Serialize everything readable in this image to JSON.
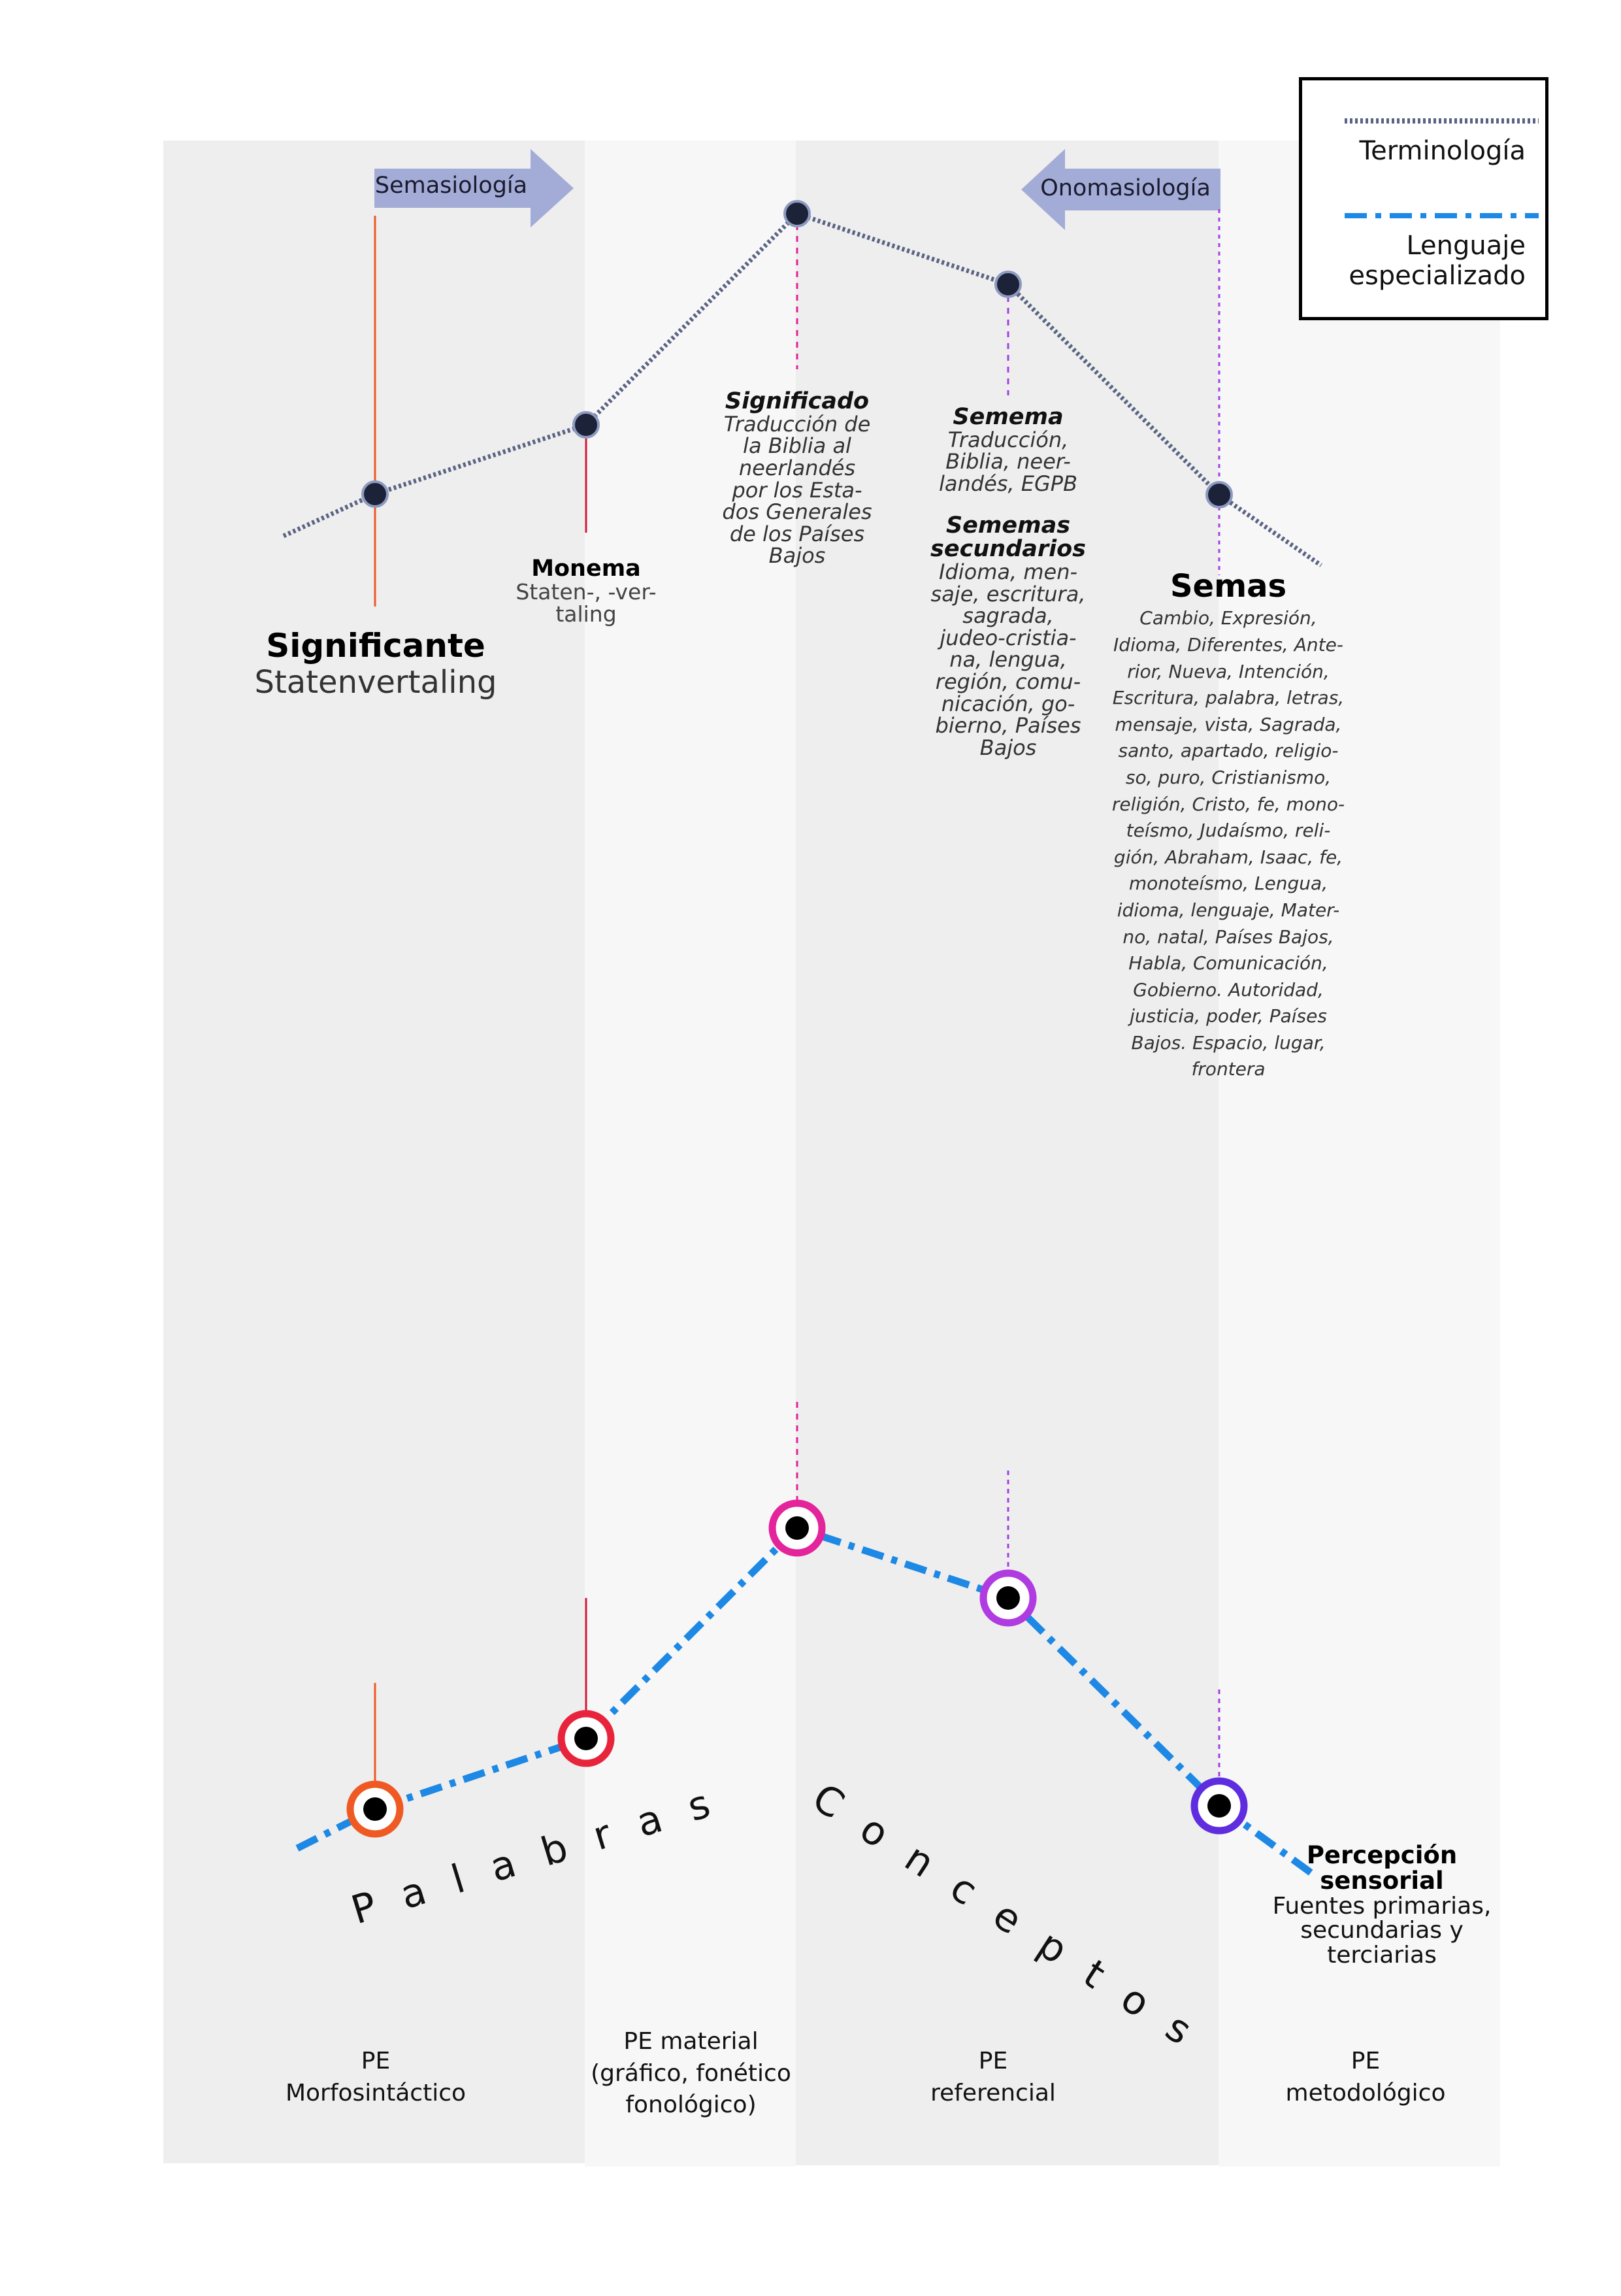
{
  "legend": {
    "terminology": "Terminología",
    "specialized_language": "Lenguaje\nespecializado"
  },
  "arrows": {
    "semasiology": "Semasiología",
    "onomasiology": "Onomasiología"
  },
  "nodes": {
    "significante": {
      "title": "Significante",
      "text": "Statenvertaling"
    },
    "monema": {
      "title": "Monema",
      "text": "Staten-, -ver-\ntaling"
    },
    "significado": {
      "title": "Significado",
      "text": "Traducción de\nla Biblia al\nneerlandés\npor  los Esta-\ndos Generales\nde los Países\nBajos"
    },
    "semema": {
      "title": "Semema",
      "text": "Traducción,\nBiblia, neer-\nlandés, EGPB"
    },
    "sememas_secundarios": {
      "title": "Sememas\nsecundarios",
      "text": "Idioma, men-\nsaje, escritura,\nsagrada,\njudeo-cristia-\nna, lengua,\nregión, comu-\nnicación, go-\nbierno, Países\nBajos"
    },
    "semas": {
      "title": "Semas",
      "text": "Cambio, Expresión,\nIdioma, Diferentes, Ante-\nrior, Nueva, Intención,\nEscritura, palabra, letras,\nmensaje, vista, Sagrada,\nsanto, apartado, religio-\nso, puro, Cristianismo,\nreligión, Cristo, fe, mono-\nteísmo, Judaísmo, reli-\ngión, Abraham, Isaac, fe,\nmonoteísmo, Lengua,\nidioma, lenguaje, Mater-\nno, natal, Países Bajos,\nHabla, Comunicación,\nGobierno. Autoridad,\njusticia, poder, Países\nBajos. Espacio, lugar,\nfrontera"
    },
    "percepcion": {
      "title": "Percepción\nsensorial",
      "text": "Fuentes primarias,\nsecundarias y\nterciarias"
    }
  },
  "big_words": {
    "palabras": "Palabras",
    "conceptos": "Conceptos"
  },
  "columns": [
    "PE\nMorfosintáctico",
    "PE material\n(gráfico, fonético\nfonológico)",
    "PE\nreferencial",
    "PE\nmetodológico"
  ],
  "colors": {
    "band_dark": "#eeeeee",
    "band_light": "#f7f7f7",
    "terminology_line": "#5a6383",
    "specialized_line": "#1e88e5",
    "arrow_fill": "#a3acd6",
    "node_dark": "#1c2238",
    "ring_orange": "#ef5a24",
    "ring_red": "#e8243c",
    "ring_pink": "#e3249b",
    "ring_violet": "#b03be0",
    "ring_indigo": "#5f2de0",
    "stem_orange": "#ef5a24",
    "stem_red": "#d3183a",
    "stem_pink": "#e3249b",
    "stem_violet": "#a640e0"
  }
}
